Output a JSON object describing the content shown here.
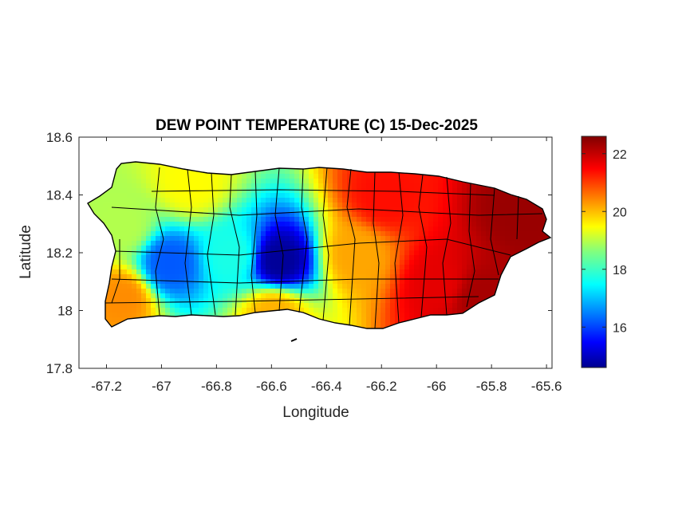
{
  "title": "DEW POINT TEMPERATURE (C) 15-Dec-2025",
  "xlabel": "Longitude",
  "ylabel": "Latitude",
  "x_axis": {
    "range": [
      -67.3,
      -65.58
    ],
    "ticks": [
      "-67.2",
      "-67",
      "-66.8",
      "-66.6",
      "-66.4",
      "-66.2",
      "-66",
      "-65.8",
      "-65.6"
    ],
    "tick_values": [
      -67.2,
      -67.0,
      -66.8,
      -66.6,
      -66.4,
      -66.2,
      -66.0,
      -65.8,
      -65.6
    ]
  },
  "y_axis": {
    "range": [
      17.8,
      18.6
    ],
    "ticks": [
      "18.6",
      "18.4",
      "18.2",
      "18",
      "17.8"
    ],
    "tick_values": [
      18.6,
      18.4,
      18.2,
      18.0,
      17.8
    ]
  },
  "colorbar": {
    "range": [
      14.6,
      22.6
    ],
    "ticks": [
      "22",
      "20",
      "18",
      "16"
    ],
    "tick_values": [
      22,
      20,
      18,
      16
    ],
    "colormap": "jet"
  },
  "map": {
    "region": "Puerto Rico",
    "field": "dew point temperature",
    "units": "C",
    "boundary_color": "#000000"
  },
  "chart_data": {
    "type": "heatmap",
    "title": "DEW POINT TEMPERATURE (C) 15-Dec-2025",
    "xlabel": "Longitude",
    "ylabel": "Latitude",
    "xlim": [
      -67.3,
      -65.58
    ],
    "ylim": [
      17.8,
      18.6
    ],
    "clim": [
      14.6,
      22.6
    ],
    "approx_values": [
      {
        "lon": -66.58,
        "lat": 18.18,
        "value": 14.8
      },
      {
        "lon": -66.98,
        "lat": 18.17,
        "value": 16.3
      },
      {
        "lon": -66.75,
        "lat": 18.2,
        "value": 17.8
      },
      {
        "lon": -67.15,
        "lat": 18.3,
        "value": 19.0
      },
      {
        "lon": -66.9,
        "lat": 18.45,
        "value": 19.6
      },
      {
        "lon": -66.3,
        "lat": 18.2,
        "value": 20.3
      },
      {
        "lon": -66.2,
        "lat": 18.4,
        "value": 21.5
      },
      {
        "lon": -66.0,
        "lat": 18.1,
        "value": 21.8
      },
      {
        "lon": -65.85,
        "lat": 18.05,
        "value": 22.3
      },
      {
        "lon": -65.7,
        "lat": 18.35,
        "value": 22.4
      },
      {
        "lon": -67.15,
        "lat": 18.05,
        "value": 20.5
      },
      {
        "lon": -66.6,
        "lat": 18.0,
        "value": 20.2
      }
    ],
    "grid": false
  }
}
